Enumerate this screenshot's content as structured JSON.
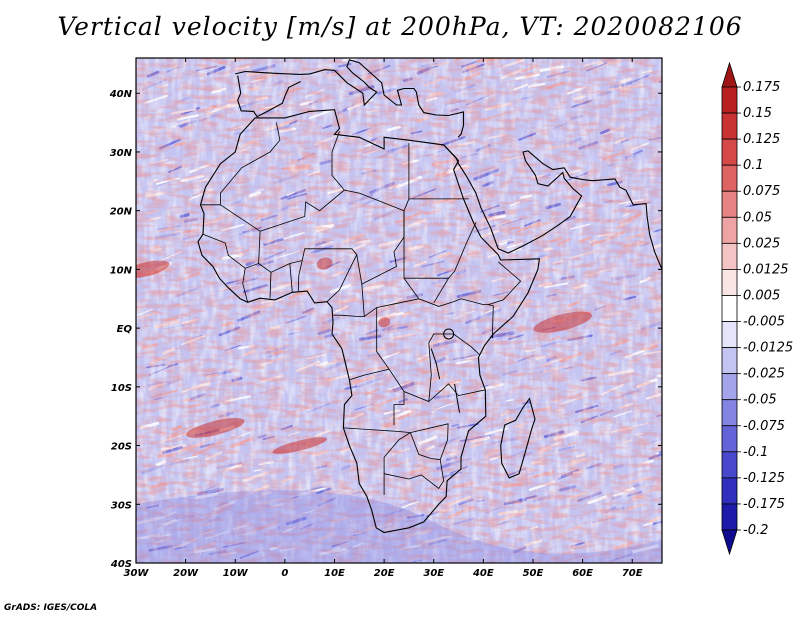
{
  "title": "Vertical velocity [m/s] at 200hPa, VT: 2020082106",
  "credit": "GrADS: IGES/COLA",
  "map": {
    "region": "Africa",
    "projection": "lat-lon",
    "lon_range": [
      -30,
      76
    ],
    "lat_range": [
      -40,
      46
    ],
    "x_ticks": [
      "30W",
      "20W",
      "10W",
      "0",
      "10E",
      "20E",
      "30E",
      "40E",
      "50E",
      "60E",
      "70E"
    ],
    "y_ticks": [
      "40S",
      "30S",
      "20S",
      "10S",
      "EQ",
      "10N",
      "20N",
      "30N",
      "40N"
    ],
    "field": "vertical velocity",
    "level": "200hPa",
    "units": "m/s",
    "valid_time": "2020082106"
  },
  "colorbar": {
    "levels": [
      "0.175",
      "0.15",
      "0.125",
      "0.1",
      "0.075",
      "0.05",
      "0.025",
      "0.0125",
      "0.005",
      "-0.005",
      "-0.0125",
      "-0.025",
      "-0.05",
      "-0.075",
      "-0.1",
      "-0.125",
      "-0.175",
      "-0.2"
    ],
    "colors": [
      "#a01616",
      "#b82020",
      "#c83232",
      "#d44848",
      "#de6464",
      "#e68484",
      "#eea4a4",
      "#f4c4c4",
      "#fae4e4",
      "#ffffff",
      "#e4e4fa",
      "#c4c4f2",
      "#a4a4ea",
      "#8484e2",
      "#6464d8",
      "#4848cc",
      "#3030bc",
      "#1c1ca8",
      "#100a90"
    ]
  },
  "colors": {
    "background": "#ffffff",
    "field_base": "#c4c4f2",
    "coast": "#000000",
    "frame": "#000000"
  }
}
